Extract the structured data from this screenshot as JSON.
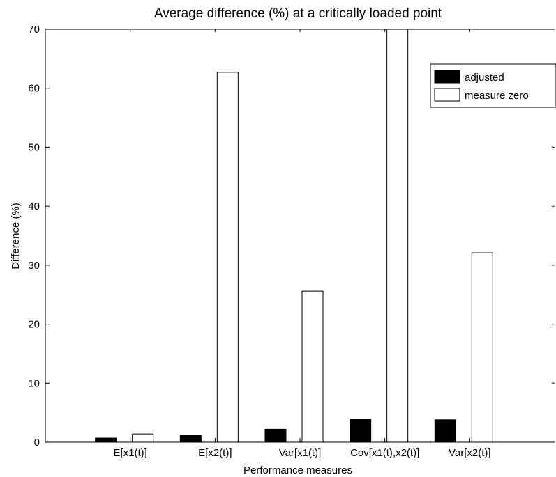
{
  "chart_data": {
    "type": "bar",
    "title": "Average difference (%) at a critically loaded point",
    "xlabel": "Performance measures",
    "ylabel": "Difference (%)",
    "categories": [
      "E[x1(t)]",
      "E[x2(t)]",
      "Var[x1(t)]",
      "Cov[x1(t),x2(t)]",
      "Var[x2(t)]"
    ],
    "ylim": [
      0,
      70
    ],
    "yticks": [
      "0",
      "10",
      "20",
      "30",
      "40",
      "50",
      "60",
      "70"
    ],
    "grid": false,
    "legend_position": "top-right",
    "series": [
      {
        "name": "adjusted",
        "values": [
          0.7,
          1.2,
          2.2,
          3.9,
          3.8
        ],
        "color": "#000000"
      },
      {
        "name": "measure zero",
        "values": [
          1.4,
          62.7,
          25.6,
          70,
          32.1
        ],
        "color": "#ffffff"
      }
    ]
  }
}
